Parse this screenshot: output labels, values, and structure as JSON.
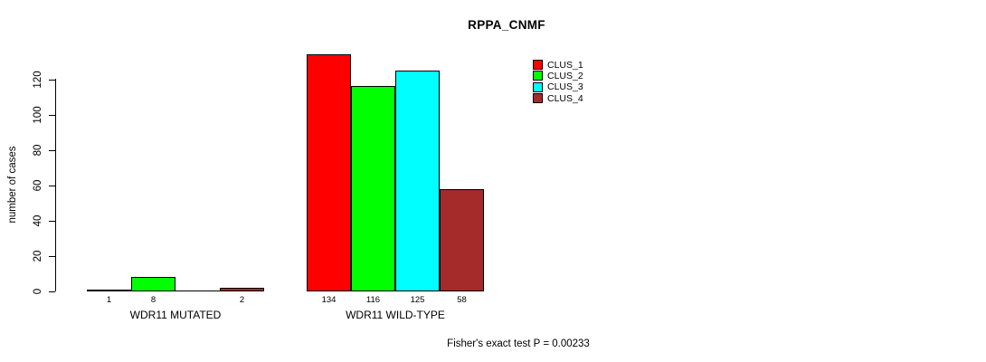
{
  "chart_data": {
    "type": "bar",
    "title": "RPPA_CNMF",
    "ylabel": "number of cases",
    "xlabel": "",
    "yticks": [
      0,
      20,
      40,
      60,
      80,
      100,
      120
    ],
    "ylim": [
      0,
      137
    ],
    "grid": false,
    "legend_position": "top-right",
    "legend": [
      {
        "label": "CLUS_1",
        "color": "#FF0000"
      },
      {
        "label": "CLUS_2",
        "color": "#00FF00"
      },
      {
        "label": "CLUS_3",
        "color": "#00FFFF"
      },
      {
        "label": "CLUS_4",
        "color": "#A52A2A"
      }
    ],
    "series_colors": [
      "#FF0000",
      "#00FF00",
      "#00FFFF",
      "#A52A2A"
    ],
    "groups": [
      {
        "label": "WDR11 MUTATED",
        "values": [
          1,
          8,
          0,
          2
        ],
        "bar_labels": [
          "1",
          "8",
          "",
          "2"
        ]
      },
      {
        "label": "WDR11 WILD-TYPE",
        "values": [
          134,
          116,
          125,
          58
        ],
        "bar_labels": [
          "134",
          "116",
          "125",
          "58"
        ]
      }
    ],
    "annotation": "Fisher's exact test P = 0.00233"
  }
}
